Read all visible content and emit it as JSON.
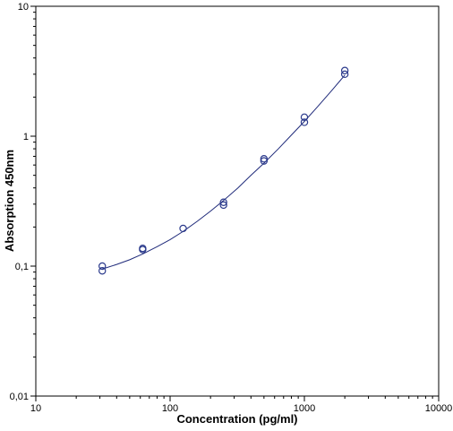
{
  "chart_data": {
    "type": "scatter",
    "title": "",
    "xlabel": "Concentration (pg/ml)",
    "ylabel": "Absorption 450nm",
    "xscale": "log",
    "yscale": "log",
    "xlim": [
      10,
      10000
    ],
    "ylim": [
      0.01,
      10
    ],
    "x_ticks": [
      {
        "value": 10,
        "label": "10"
      },
      {
        "value": 100,
        "label": "100"
      },
      {
        "value": 1000,
        "label": "1000"
      },
      {
        "value": 10000,
        "label": "10000"
      }
    ],
    "y_ticks": [
      {
        "value": 0.01,
        "label": "0,01"
      },
      {
        "value": 0.1,
        "label": "0,1"
      },
      {
        "value": 1,
        "label": "1"
      },
      {
        "value": 10,
        "label": "10"
      }
    ],
    "grid": false,
    "legend": "none",
    "marker_color": "#2b3a8c",
    "line_color": "#1f2a7a",
    "points": [
      {
        "x": 31.25,
        "y": 0.1
      },
      {
        "x": 31.25,
        "y": 0.092
      },
      {
        "x": 62.5,
        "y": 0.137
      },
      {
        "x": 62.5,
        "y": 0.134
      },
      {
        "x": 125,
        "y": 0.195
      },
      {
        "x": 250,
        "y": 0.31
      },
      {
        "x": 250,
        "y": 0.295
      },
      {
        "x": 500,
        "y": 0.67
      },
      {
        "x": 500,
        "y": 0.645
      },
      {
        "x": 1000,
        "y": 1.4
      },
      {
        "x": 1000,
        "y": 1.28
      },
      {
        "x": 2000,
        "y": 3.2
      },
      {
        "x": 2000,
        "y": 3.0
      }
    ],
    "fit_curve": [
      {
        "x": 31.25,
        "y": 0.095
      },
      {
        "x": 40,
        "y": 0.103
      },
      {
        "x": 50,
        "y": 0.112
      },
      {
        "x": 62.5,
        "y": 0.124
      },
      {
        "x": 80,
        "y": 0.141
      },
      {
        "x": 100,
        "y": 0.16
      },
      {
        "x": 125,
        "y": 0.185
      },
      {
        "x": 160,
        "y": 0.222
      },
      {
        "x": 200,
        "y": 0.265
      },
      {
        "x": 250,
        "y": 0.32
      },
      {
        "x": 320,
        "y": 0.4
      },
      {
        "x": 400,
        "y": 0.5
      },
      {
        "x": 500,
        "y": 0.62
      },
      {
        "x": 640,
        "y": 0.8
      },
      {
        "x": 800,
        "y": 1.02
      },
      {
        "x": 1000,
        "y": 1.3
      },
      {
        "x": 1250,
        "y": 1.68
      },
      {
        "x": 1600,
        "y": 2.25
      },
      {
        "x": 2000,
        "y": 2.95
      }
    ]
  }
}
